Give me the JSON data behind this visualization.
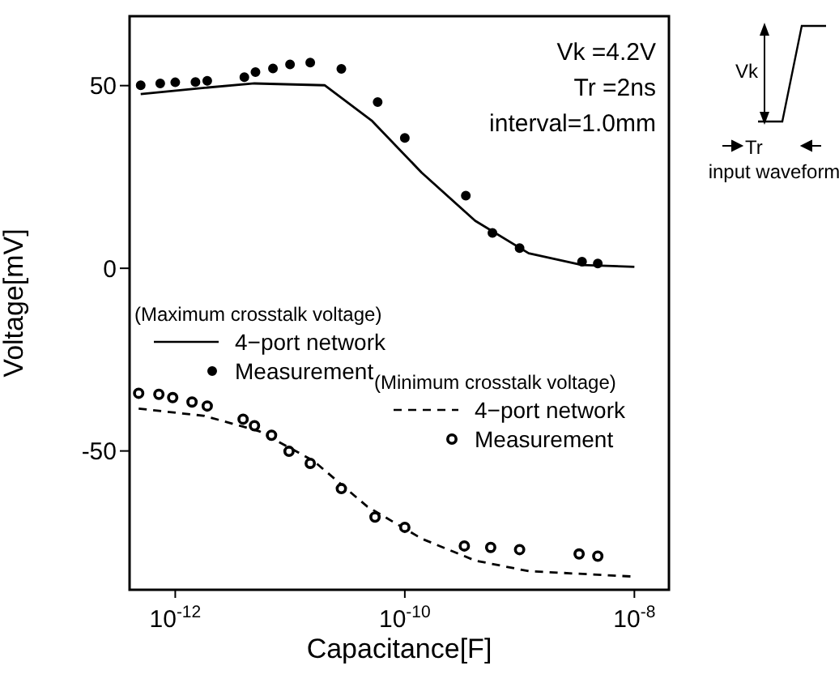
{
  "chart_data": {
    "type": "scatter",
    "xlabel": "Capacitance[F]",
    "ylabel": "Voltage[mV]",
    "log": "x",
    "xlim": [
      4e-13,
      2e-08
    ],
    "xticks": [
      {
        "value": 1e-12,
        "label": "10$^{-12}$"
      },
      {
        "value": 1e-10,
        "label": "10$^{-10}$"
      },
      {
        "value": 1e-08,
        "label": "10$^{-8}$"
      }
    ],
    "ylim": [
      -88,
      69
    ],
    "yticks": [
      -50,
      0,
      50
    ],
    "grid": false,
    "legend": "left",
    "marker": "circle",
    "annotations": [
      "Vk =4.2V",
      "Tr =2ns",
      "interval=1.0mm",
      "(Maximum crosstalk voltage)",
      "(Minimum crosstalk voltage)",
      "Vk",
      "Tr",
      "input waveform"
    ],
    "series": [
      {
        "name": "4−port network",
        "type": "line",
        "marker": "none",
        "line_style": "solid",
        "color": "#000000",
        "x": [
          5e-13,
          1.8e-12,
          4.9e-12,
          2e-11,
          5.2e-11,
          1.4e-10,
          4.1e-10,
          1.2e-09,
          3.5e-09,
          1e-08
        ],
        "values": [
          47.7,
          49.4,
          50.6,
          50.1,
          40.3,
          26.2,
          13.0,
          4.1,
          0.9,
          0.4
        ]
      },
      {
        "name": "Measurement",
        "color": "#000000",
        "x": [
          5e-13,
          7.4e-13,
          1e-12,
          1.5e-12,
          1.9e-12,
          4e-12,
          5e-12,
          7.1e-12,
          1e-11,
          1.5e-11,
          2.8e-11,
          5.8e-11,
          1e-10,
          3.4e-10,
          5.8e-10,
          1e-09,
          3.5e-09,
          4.8e-09
        ],
        "values": [
          50.1,
          50.6,
          50.9,
          51.0,
          51.3,
          52.3,
          53.7,
          54.7,
          55.8,
          56.3,
          54.6,
          45.5,
          35.7,
          19.9,
          9.7,
          5.5,
          1.8,
          1.3
        ]
      },
      {
        "name": "4−port network",
        "type": "line",
        "marker": "none",
        "line_style": "dashed",
        "color": "#000000",
        "x": [
          4.8e-13,
          1.8e-12,
          5.4e-12,
          1.6e-11,
          4.7e-11,
          1.4e-10,
          4.1e-10,
          1.2e-09,
          1e-08
        ],
        "values": [
          -38.4,
          -40.4,
          -44.6,
          -52.7,
          -65.2,
          -74.0,
          -80.0,
          -82.9,
          -84.4
        ]
      },
      {
        "name": "Measurement",
        "color": "#000000",
        "x": [
          4.8e-13,
          7.2e-13,
          9.5e-13,
          1.4e-12,
          1.9e-12,
          3.9e-12,
          4.9e-12,
          6.9e-12,
          9.8e-12,
          1.5e-11,
          2.8e-11,
          5.5e-11,
          1e-10,
          3.3e-10,
          5.6e-10,
          1e-09,
          3.3e-09,
          4.8e-09
        ],
        "values": [
          -34.2,
          -34.5,
          -35.4,
          -36.6,
          -37.7,
          -41.3,
          -43.1,
          -45.7,
          -50.1,
          -53.4,
          -60.3,
          -68.1,
          -70.9,
          -76.0,
          -76.4,
          -77.0,
          -78.2,
          -78.8
        ]
      }
    ]
  }
}
